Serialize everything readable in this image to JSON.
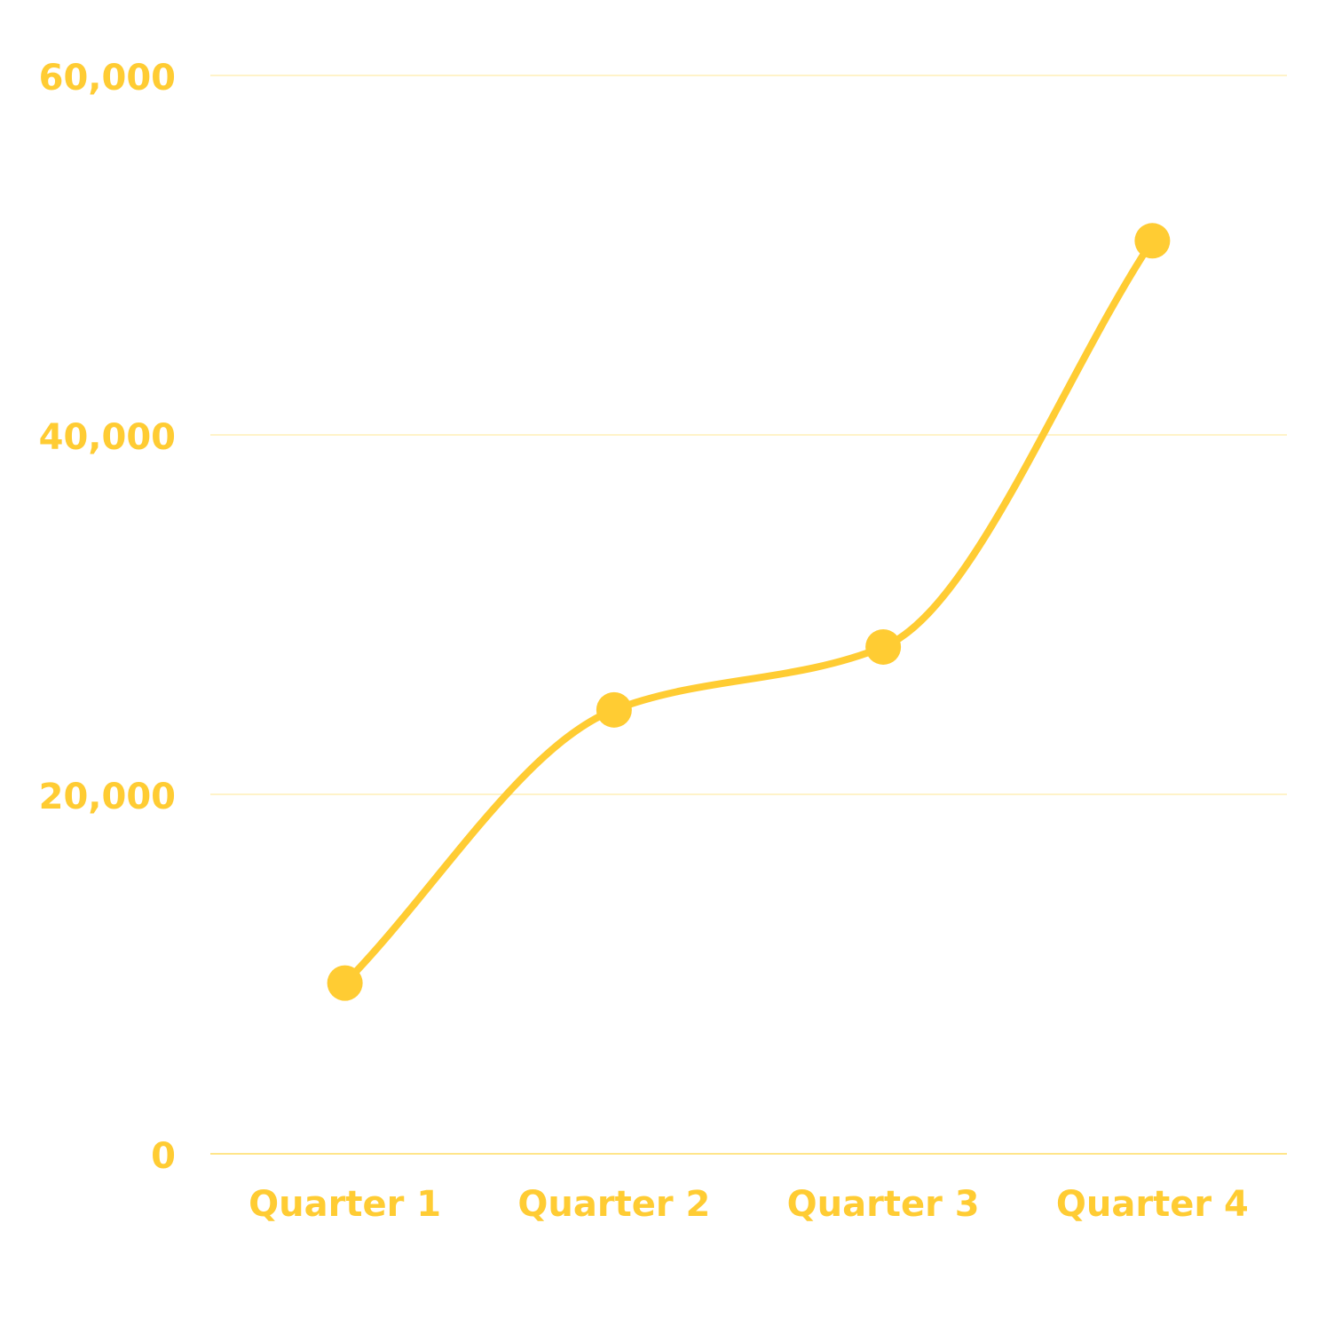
{
  "chart_data": {
    "type": "line",
    "categories": [
      "Quarter 1",
      "Quarter 2",
      "Quarter 3",
      "Quarter 4"
    ],
    "series": [
      {
        "values": [
          9500,
          24700,
          28200,
          50800
        ]
      }
    ],
    "y_ticks": [
      "0",
      "20,000",
      "40,000",
      "60,000"
    ],
    "y_tick_values": [
      0,
      20000,
      40000,
      60000
    ],
    "ylim": [
      0,
      60000
    ],
    "grid": true,
    "smooth": true,
    "markers": true,
    "colors": {
      "series": "#FFCC33",
      "tick_text": "#FFCC33",
      "grid": "#FFF3C9",
      "baseline": "#FFE58A"
    }
  }
}
